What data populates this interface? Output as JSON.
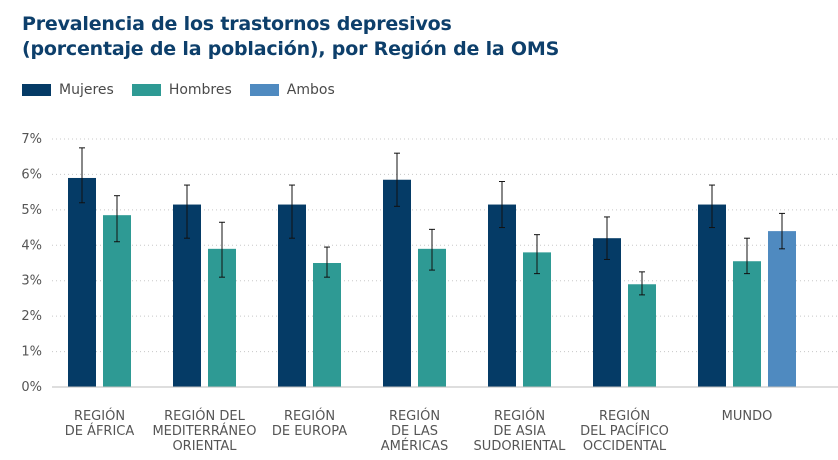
{
  "chart_data": {
    "type": "bar",
    "title": [
      "Prevalencia de los trastornos depresivos",
      "(porcentaje de la población), por Región de la OMS"
    ],
    "categories": [
      [
        "REGIÓN",
        "DE ÁFRICA"
      ],
      [
        "REGIÓN DEL",
        "MEDITERRÁNEO",
        "ORIENTAL"
      ],
      [
        "REGIÓN",
        "DE EUROPA"
      ],
      [
        "REGIÓN",
        "DE LAS",
        "AMÉRICAS"
      ],
      [
        "REGIÓN",
        "DE ASIA",
        "SUDORIENTAL"
      ],
      [
        "REGIÓN",
        "DEL PACÍFICO",
        "OCCIDENTAL"
      ],
      [
        "MUNDO"
      ]
    ],
    "series": [
      {
        "name": "Mujeres",
        "color": "#053b66",
        "values": [
          5.9,
          5.15,
          5.15,
          5.85,
          5.15,
          4.2,
          5.15
        ],
        "error_low": [
          5.2,
          4.2,
          4.2,
          5.1,
          4.5,
          3.6,
          4.5
        ],
        "error_high": [
          6.75,
          5.7,
          5.7,
          6.6,
          5.8,
          4.8,
          5.7
        ]
      },
      {
        "name": "Hombres",
        "color": "#2e9a94",
        "values": [
          4.85,
          3.9,
          3.5,
          3.9,
          3.8,
          2.9,
          3.55
        ],
        "error_low": [
          4.1,
          3.1,
          3.1,
          3.3,
          3.2,
          2.6,
          3.2
        ],
        "error_high": [
          5.4,
          4.65,
          3.95,
          4.45,
          4.3,
          3.25,
          4.2
        ]
      },
      {
        "name": "Ambos",
        "color": "#4f8ac0",
        "values": [
          null,
          null,
          null,
          null,
          null,
          null,
          4.4
        ],
        "error_low": [
          null,
          null,
          null,
          null,
          null,
          null,
          3.9
        ],
        "error_high": [
          null,
          null,
          null,
          null,
          null,
          null,
          4.9
        ]
      }
    ],
    "yticks": [
      "0%",
      "1%",
      "2%",
      "3%",
      "4%",
      "5%",
      "6%",
      "7%"
    ],
    "ylim": [
      0,
      7
    ],
    "ylabel": "",
    "xlabel": "",
    "grid": true,
    "legend": "top-left"
  }
}
